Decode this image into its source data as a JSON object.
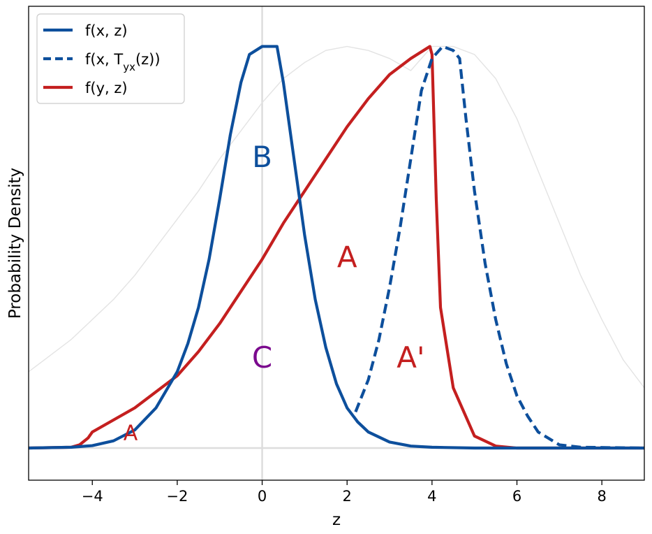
{
  "chart_data": {
    "type": "line",
    "title": "",
    "xlabel": "z",
    "ylabel": "Probability Density",
    "xlim": [
      -5.5,
      9
    ],
    "ylim": [
      -0.08,
      1.1
    ],
    "xticks": [
      -4,
      -2,
      0,
      2,
      4,
      6,
      8
    ],
    "xtick_labels": [
      "−4",
      "−2",
      "0",
      "2",
      "4",
      "6",
      "8"
    ],
    "grid": false,
    "legend_position": "top-left",
    "reference_lines": {
      "vertical_x": 0,
      "horizontal_y": 0,
      "color": "#dddddd"
    },
    "background_curve": {
      "name": "",
      "color": "#e3e3e3",
      "x": [
        -5.5,
        -5,
        -4.5,
        -4,
        -3.5,
        -3,
        -2.5,
        -2,
        -1.5,
        -1,
        -0.5,
        0,
        0.5,
        1,
        1.5,
        2,
        2.5,
        3,
        3.5,
        4,
        4.5,
        5,
        5.5,
        6,
        6.5,
        7,
        7.5,
        8,
        8.5,
        9
      ],
      "y": [
        0.19,
        0.23,
        0.27,
        0.32,
        0.37,
        0.43,
        0.5,
        0.57,
        0.64,
        0.72,
        0.79,
        0.86,
        0.92,
        0.96,
        0.99,
        1.0,
        0.99,
        0.97,
        0.94,
        1.0,
        1.0,
        0.98,
        0.92,
        0.82,
        0.69,
        0.56,
        0.43,
        0.32,
        0.22,
        0.15
      ]
    },
    "series": [
      {
        "name": "f(x, z)",
        "color": "#0d4f9c",
        "dash": "solid",
        "x": [
          -5.5,
          -4.5,
          -4,
          -3.5,
          -3,
          -2.5,
          -2,
          -1.75,
          -1.5,
          -1.25,
          -1,
          -0.75,
          -0.5,
          -0.3,
          0,
          0.35,
          0.5,
          0.75,
          1,
          1.25,
          1.5,
          1.75,
          2,
          2.25,
          2.5,
          3,
          3.5,
          4,
          5,
          6,
          9
        ],
        "y": [
          0,
          0.002,
          0.006,
          0.018,
          0.045,
          0.1,
          0.19,
          0.26,
          0.35,
          0.47,
          0.62,
          0.78,
          0.91,
          0.98,
          1.0,
          1.0,
          0.91,
          0.72,
          0.53,
          0.37,
          0.25,
          0.16,
          0.1,
          0.065,
          0.04,
          0.015,
          0.005,
          0.002,
          0,
          0,
          0
        ]
      },
      {
        "name": "f(x, T_yx(z))",
        "color": "#0d4f9c",
        "dash": "dashed",
        "x": [
          2.2,
          2.5,
          2.75,
          3,
          3.25,
          3.5,
          3.75,
          4,
          4.25,
          4.5,
          4.65,
          4.8,
          5,
          5.25,
          5.5,
          5.75,
          6,
          6.25,
          6.5,
          7,
          7.5,
          9
        ],
        "y": [
          0.09,
          0.17,
          0.27,
          0.4,
          0.55,
          0.72,
          0.89,
          0.97,
          1.0,
          0.99,
          0.97,
          0.82,
          0.64,
          0.46,
          0.32,
          0.21,
          0.13,
          0.08,
          0.04,
          0.008,
          0.002,
          0
        ]
      },
      {
        "name": "f(y, z)",
        "color": "#c41f1f",
        "dash": "solid",
        "x": [
          -5.5,
          -4.5,
          -4.3,
          -4.1,
          -4,
          -3.5,
          -3,
          -2.5,
          -2,
          -1.5,
          -1,
          -0.5,
          0,
          0.5,
          1,
          1.5,
          2,
          2.5,
          3,
          3.5,
          3.95,
          4.0,
          4.1,
          4.2,
          4.5,
          5,
          5.5,
          6,
          9
        ],
        "y": [
          0,
          0.002,
          0.008,
          0.025,
          0.04,
          0.07,
          0.1,
          0.14,
          0.18,
          0.24,
          0.31,
          0.39,
          0.47,
          0.56,
          0.64,
          0.72,
          0.8,
          0.87,
          0.93,
          0.97,
          1.0,
          0.98,
          0.62,
          0.35,
          0.15,
          0.03,
          0.005,
          0,
          0
        ]
      }
    ],
    "annotations": [
      {
        "text": "B",
        "x": 0,
        "y": 0.72,
        "color": "#0d4f9c"
      },
      {
        "text": "A",
        "x": 2.0,
        "y": 0.47,
        "color": "#c41f1f"
      },
      {
        "text": "C",
        "x": 0,
        "y": 0.22,
        "color": "#7b0a8e"
      },
      {
        "text": "A'",
        "x": 3.5,
        "y": 0.22,
        "color": "#c41f1f"
      },
      {
        "text": "A",
        "x": -3.1,
        "y": 0.035,
        "color": "#c41f1f",
        "small": true
      }
    ]
  }
}
